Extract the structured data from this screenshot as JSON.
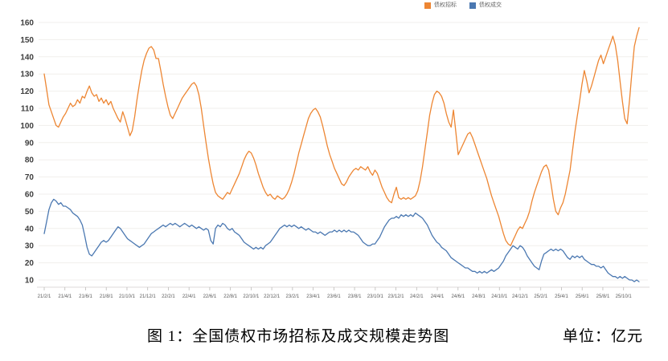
{
  "legend": [
    {
      "id": "bond-tender",
      "label": "债权招标",
      "color": "#ED8633"
    },
    {
      "id": "bond-deal",
      "label": "债权成交",
      "color": "#4B78B1"
    }
  ],
  "caption": {
    "title": "图 1：全国债权市场招标及成交规模走势图",
    "unit": "单位：亿元"
  },
  "chart_data": {
    "type": "line",
    "title": "全国债权市场招标及成交规模走势图",
    "xlabel": "",
    "ylabel": "",
    "unit": "亿元",
    "ylim": [
      10,
      160
    ],
    "y_ticks": [
      10,
      20,
      30,
      40,
      50,
      60,
      70,
      80,
      90,
      100,
      110,
      120,
      130,
      140,
      150,
      160
    ],
    "grid": true,
    "legend_position": "top",
    "x_frequency": "weekly",
    "x_tick_labels": [
      "21/2/1",
      "21/4/1",
      "21/6/1",
      "21/8/1",
      "21/10/1",
      "21/12/1",
      "22/2/1",
      "22/4/1",
      "22/6/1",
      "22/8/1",
      "22/10/1",
      "22/12/1",
      "23/2/1",
      "23/4/1",
      "23/6/1",
      "23/8/1",
      "23/10/1",
      "23/12/1",
      "24/2/1",
      "24/4/1",
      "24/6/1",
      "24/8/1",
      "24/10/1",
      "24/12/1",
      "25/2/1",
      "25/4/1",
      "25/6/1",
      "25/8/1",
      "25/10/1"
    ],
    "series": [
      {
        "id": "bond-tender",
        "name": "债权招标",
        "color": "#ED8633",
        "values": [
          130,
          121,
          112,
          108,
          104,
          100,
          99,
          102,
          105,
          107,
          110,
          113,
          111,
          112,
          115,
          113,
          117,
          116,
          120,
          123,
          119,
          117,
          118,
          114,
          116,
          113,
          115,
          112,
          114,
          110,
          107,
          104,
          102,
          108,
          104,
          99,
          94,
          97,
          105,
          115,
          124,
          132,
          138,
          142,
          145,
          146,
          144,
          139,
          139,
          132,
          124,
          117,
          111,
          106,
          104,
          107,
          110,
          113,
          116,
          118,
          120,
          122,
          124,
          125,
          123,
          118,
          110,
          100,
          90,
          81,
          73,
          66,
          61,
          59,
          58,
          57,
          59,
          61,
          60,
          63,
          66,
          69,
          72,
          76,
          80,
          83,
          85,
          84,
          81,
          77,
          72,
          68,
          64,
          61,
          59,
          60,
          58,
          57,
          59,
          58,
          57,
          58,
          60,
          63,
          67,
          72,
          78,
          84,
          89,
          94,
          99,
          104,
          107,
          109,
          110,
          108,
          105,
          100,
          94,
          88,
          83,
          79,
          75,
          72,
          69,
          66,
          65,
          67,
          70,
          72,
          74,
          75,
          74,
          76,
          75,
          74,
          76,
          73,
          71,
          74,
          72,
          68,
          64,
          61,
          58,
          56,
          55,
          60,
          64,
          58,
          57,
          58,
          57,
          58,
          57,
          58,
          59,
          62,
          68,
          76,
          86,
          96,
          106,
          113,
          118,
          120,
          119,
          117,
          113,
          107,
          102,
          99,
          109,
          96,
          83,
          86,
          89,
          92,
          95,
          96,
          93,
          89,
          85,
          81,
          77,
          73,
          69,
          64,
          59,
          55,
          51,
          47,
          42,
          37,
          33,
          31,
          30,
          33,
          36,
          39,
          41,
          40,
          43,
          46,
          50,
          56,
          61,
          65,
          69,
          73,
          76,
          77,
          74,
          66,
          57,
          50,
          48,
          52,
          55,
          60,
          67,
          74,
          85,
          96,
          105,
          114,
          124,
          132,
          126,
          119,
          123,
          128,
          133,
          138,
          141,
          136,
          140,
          144,
          148,
          152,
          147,
          138,
          126,
          114,
          104,
          101,
          115,
          131,
          146,
          152,
          157
        ]
      },
      {
        "id": "bond-deal",
        "name": "债权成交",
        "color": "#4B78B1",
        "values": [
          37,
          44,
          51,
          55,
          57,
          56,
          54,
          55,
          53,
          53,
          52,
          51,
          49,
          48,
          47,
          45,
          42,
          36,
          29,
          25,
          24,
          26,
          28,
          30,
          32,
          33,
          32,
          33,
          35,
          37,
          39,
          41,
          40,
          38,
          36,
          34,
          33,
          32,
          31,
          30,
          29,
          30,
          31,
          33,
          35,
          37,
          38,
          39,
          40,
          41,
          42,
          41,
          42,
          43,
          42,
          43,
          42,
          41,
          42,
          43,
          42,
          41,
          42,
          41,
          40,
          41,
          40,
          39,
          40,
          39,
          33,
          31,
          40,
          42,
          41,
          43,
          42,
          40,
          39,
          40,
          38,
          37,
          36,
          34,
          32,
          31,
          30,
          29,
          28,
          29,
          28,
          29,
          28,
          30,
          31,
          32,
          34,
          36,
          38,
          40,
          41,
          42,
          41,
          42,
          41,
          42,
          41,
          40,
          41,
          40,
          39,
          40,
          39,
          38,
          38,
          37,
          38,
          37,
          36,
          37,
          38,
          38,
          39,
          38,
          39,
          38,
          39,
          38,
          39,
          38,
          38,
          37,
          36,
          34,
          32,
          31,
          30,
          30,
          31,
          31,
          33,
          35,
          38,
          41,
          43,
          45,
          46,
          46,
          47,
          46,
          48,
          47,
          48,
          47,
          48,
          47,
          49,
          48,
          47,
          46,
          44,
          42,
          39,
          36,
          34,
          32,
          31,
          29,
          28,
          27,
          25,
          23,
          22,
          21,
          20,
          19,
          18,
          17,
          17,
          16,
          15,
          15,
          14,
          15,
          14,
          15,
          14,
          15,
          16,
          15,
          16,
          17,
          19,
          21,
          24,
          26,
          28,
          30,
          29,
          28,
          30,
          29,
          27,
          24,
          22,
          20,
          18,
          17,
          16,
          21,
          25,
          26,
          27,
          28,
          27,
          28,
          27,
          28,
          27,
          25,
          23,
          22,
          24,
          23,
          24,
          23,
          24,
          22,
          21,
          20,
          19,
          19,
          18,
          18,
          17,
          18,
          16,
          14,
          13,
          12,
          12,
          11,
          12,
          11,
          12,
          11,
          10,
          10,
          9,
          10,
          9
        ]
      }
    ]
  }
}
